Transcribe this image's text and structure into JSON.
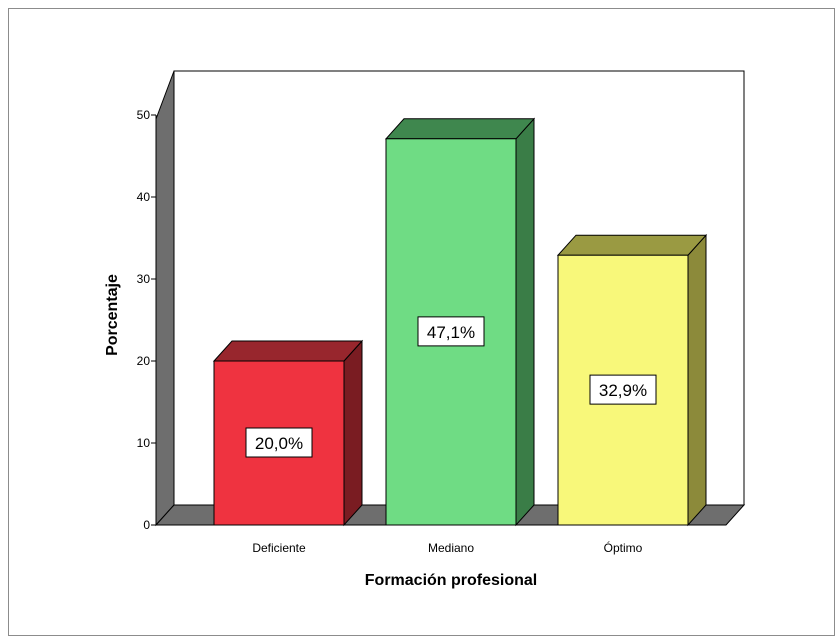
{
  "chart_data": {
    "type": "bar",
    "style": "3d",
    "title": "",
    "xlabel": "Formación profesional",
    "ylabel": "Porcentaje",
    "categories": [
      "Deficiente",
      "Mediano",
      "Óptimo"
    ],
    "values": [
      20.0,
      47.1,
      32.9
    ],
    "data_labels": [
      "20,0%",
      "47,1%",
      "32,9%"
    ],
    "ylim": [
      0,
      50
    ],
    "yticks": [
      0,
      10,
      20,
      30,
      40,
      50
    ],
    "grid": false,
    "legend": "none",
    "colors": {
      "bars": [
        {
          "front": "#ef3340",
          "top": "#98262d",
          "side": "#7a1c22"
        },
        {
          "front": "#6fdc84",
          "top": "#3f874e",
          "side": "#3a7d47"
        },
        {
          "front": "#f8f87a",
          "top": "#9a9a42",
          "side": "#8c8a3a"
        }
      ],
      "wall": "#6e6e6e",
      "back_wall": "#ffffff",
      "outline": "#000000"
    }
  }
}
